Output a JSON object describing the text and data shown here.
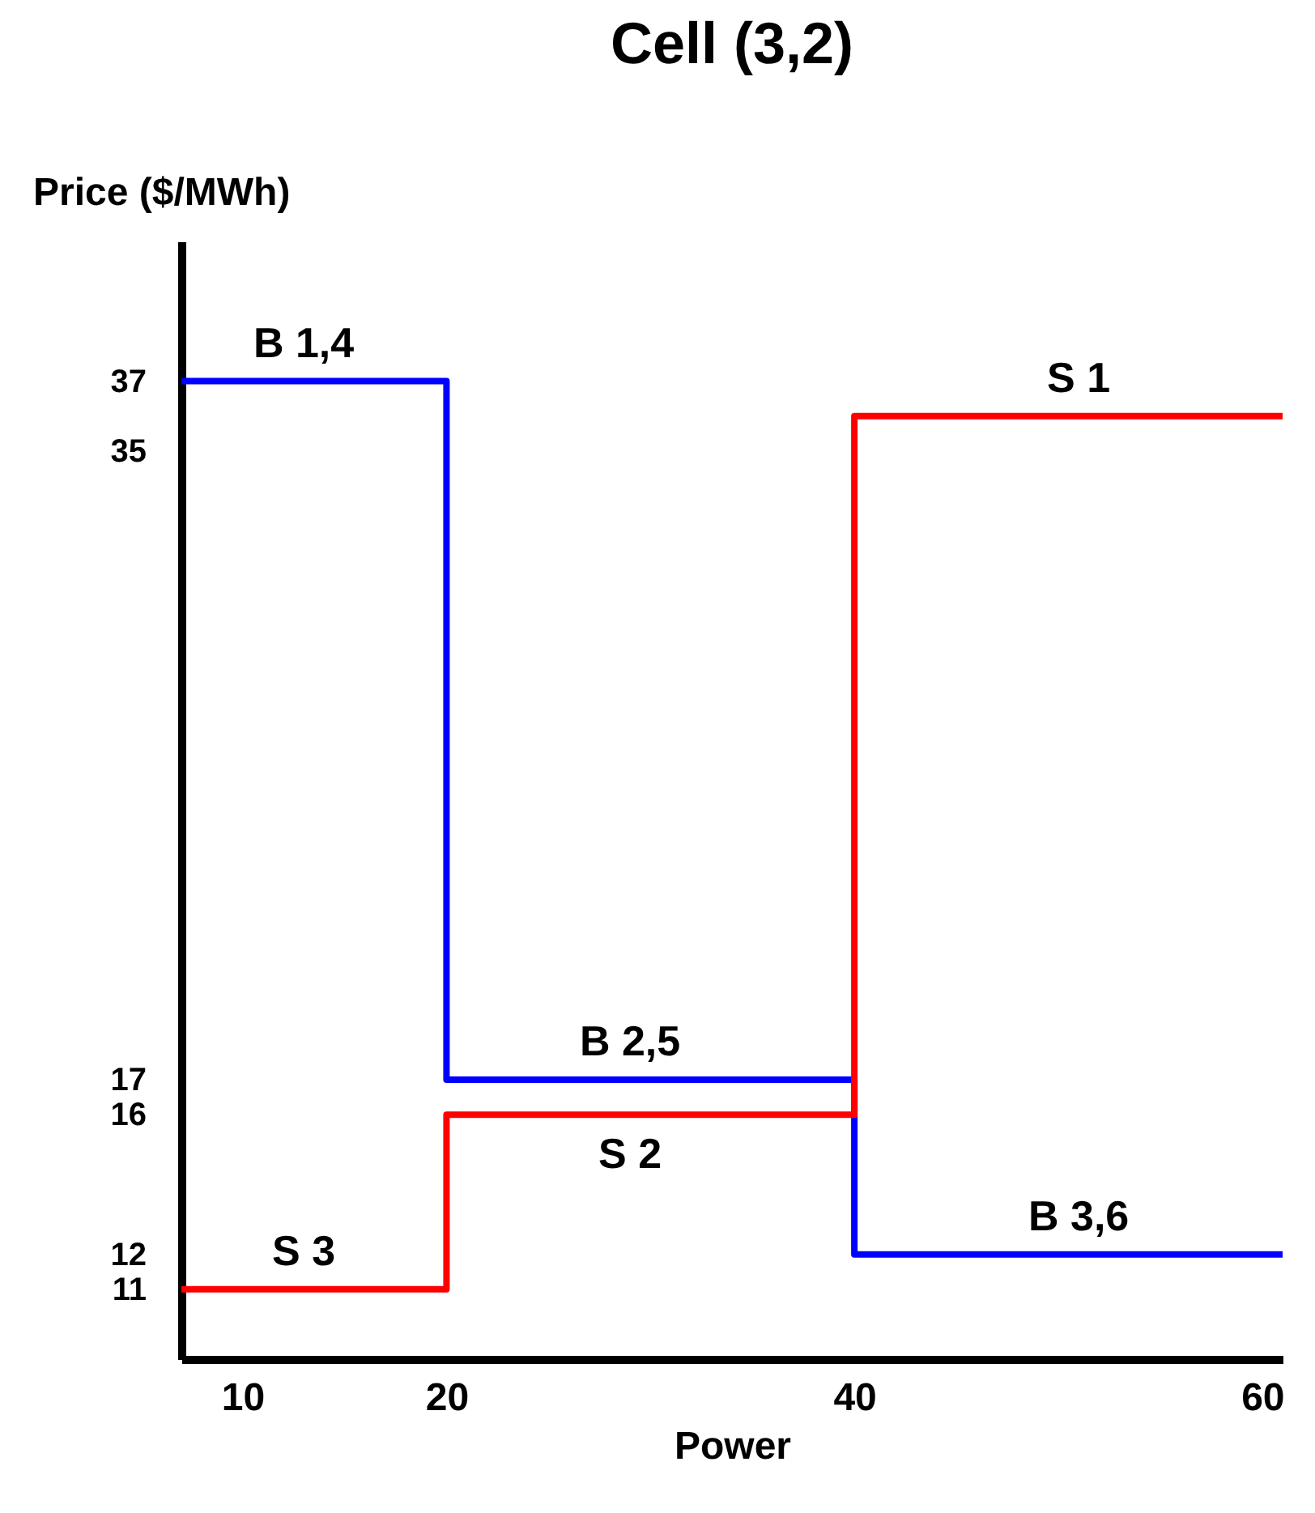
{
  "chart_data": {
    "type": "step",
    "title": "Cell (3,2)",
    "xlabel": "Power",
    "ylabel": "Price ($/MWh)",
    "x": [
      7,
      20,
      40,
      61
    ],
    "series": [
      {
        "color": "#0000ff",
        "values": [
          37,
          17,
          12,
          12
        ]
      },
      {
        "color": "#ff0000",
        "values": [
          11,
          16,
          36,
          36
        ]
      }
    ],
    "xlim": [
      7,
      61
    ],
    "xticks": [
      10,
      20,
      40,
      60
    ],
    "ylim": [
      9,
      41
    ],
    "yticks": [
      11,
      12,
      16,
      17,
      35,
      37
    ],
    "annotations": [
      {
        "text": "B 1,4",
        "x": 13,
        "y": 37
      },
      {
        "text": "B 2,5",
        "x": 29,
        "y": 17
      },
      {
        "text": "S 2",
        "x": 29,
        "y": 16
      },
      {
        "text": "B 3,6",
        "x": 51,
        "y": 12
      },
      {
        "text": "S 1",
        "x": 51,
        "y": 36
      },
      {
        "text": "S 3",
        "x": 13,
        "y": 11
      }
    ],
    "grid": false,
    "marker": "none"
  }
}
